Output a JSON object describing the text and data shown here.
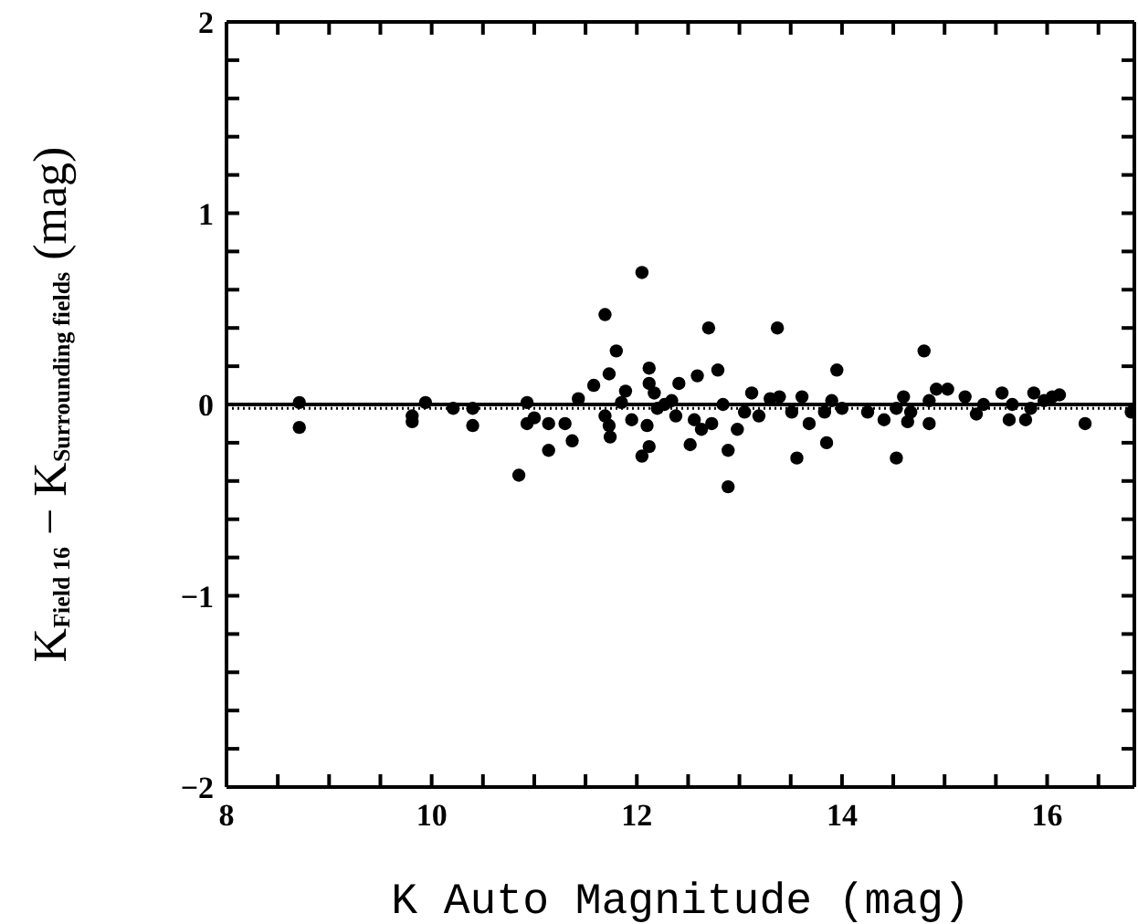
{
  "chart_data": {
    "type": "scatter",
    "xlabel": "K Auto Magnitude (mag)",
    "ylabel": "K$_{Field 16}$ − K$_{Surrounding fields}$ (mag)",
    "xlim": [
      8,
      16.85
    ],
    "ylim": [
      -2,
      2
    ],
    "xticks": [
      8,
      {
        "value": 8.5,
        "label": null
      },
      10,
      {
        "value": 9,
        "label": null
      },
      {
        "value": 9.5,
        "label": null
      },
      {
        "value": 10.5,
        "label": null
      },
      {
        "value": 11,
        "label": null
      },
      {
        "value": 11.5,
        "label": null
      },
      12,
      {
        "value": 12.5,
        "label": null
      },
      {
        "value": 13,
        "label": null
      },
      {
        "value": 13.5,
        "label": null
      },
      14,
      {
        "value": 14.5,
        "label": null
      },
      {
        "value": 15,
        "label": null
      },
      {
        "value": 15.5,
        "label": null
      },
      16,
      {
        "value": 16.5,
        "label": null
      }
    ],
    "yticks": [
      -2,
      {
        "value": -1.8,
        "label": null
      },
      {
        "value": -1.6,
        "label": null
      },
      {
        "value": -1.4,
        "label": null
      },
      {
        "value": -1.2,
        "label": null
      },
      -1,
      {
        "value": -0.8,
        "label": null
      },
      {
        "value": -0.6,
        "label": null
      },
      {
        "value": -0.4,
        "label": null
      },
      {
        "value": -0.2,
        "label": null
      },
      0,
      {
        "value": 0.2,
        "label": null
      },
      {
        "value": 0.4,
        "label": null
      },
      {
        "value": 0.6,
        "label": null
      },
      {
        "value": 0.8,
        "label": null
      },
      1,
      {
        "value": 1.2,
        "label": null
      },
      {
        "value": 1.4,
        "label": null
      },
      {
        "value": 1.6,
        "label": null
      },
      {
        "value": 1.8,
        "label": null
      },
      2
    ],
    "marker": "circle",
    "ref_lines": [
      {
        "axis": "y",
        "value": 0,
        "color": "#000000",
        "line_style": "solid"
      },
      {
        "axis": "y",
        "value": -0.02,
        "color": "#000000",
        "line_style": "dotted"
      }
    ],
    "series": [
      {
        "color": "#000000",
        "x": [
          8.71,
          8.71,
          9.81,
          9.81,
          9.94,
          10.21,
          10.4,
          10.4,
          10.85,
          10.93,
          10.93,
          11.0,
          11.14,
          11.14,
          11.3,
          11.37,
          11.43,
          11.58,
          11.69,
          11.73,
          11.69,
          11.73,
          11.74,
          11.8,
          11.89,
          11.85,
          11.95,
          12.05,
          12.05,
          12.12,
          12.12,
          12.12,
          12.1,
          12.17,
          12.2,
          12.27,
          12.34,
          12.41,
          12.38,
          12.52,
          12.59,
          12.56,
          12.63,
          12.7,
          12.73,
          12.79,
          12.84,
          12.89,
          12.89,
          12.98,
          13.05,
          13.12,
          13.19,
          13.3,
          13.37,
          13.39,
          13.51,
          13.56,
          13.61,
          13.68,
          13.83,
          13.85,
          13.9,
          13.95,
          14.0,
          14.25,
          14.41,
          14.53,
          14.53,
          14.6,
          14.64,
          14.67,
          14.8,
          14.85,
          14.85,
          14.92,
          15.03,
          15.2,
          15.31,
          15.38,
          15.56,
          15.63,
          15.66,
          15.79,
          15.84,
          15.87,
          15.97,
          16.05,
          16.12,
          16.37,
          16.82
        ],
        "values": [
          0.01,
          -0.12,
          -0.06,
          -0.09,
          0.01,
          -0.02,
          -0.02,
          -0.11,
          -0.37,
          0.01,
          -0.1,
          -0.07,
          -0.1,
          -0.24,
          -0.1,
          -0.19,
          0.03,
          0.1,
          0.47,
          0.16,
          -0.06,
          -0.11,
          -0.17,
          0.28,
          0.07,
          0.01,
          -0.08,
          0.69,
          -0.27,
          0.19,
          0.11,
          -0.22,
          -0.11,
          0.06,
          -0.02,
          0.0,
          0.02,
          0.11,
          -0.06,
          -0.21,
          0.15,
          -0.08,
          -0.13,
          0.4,
          -0.1,
          0.18,
          0.0,
          -0.24,
          -0.43,
          -0.13,
          -0.04,
          0.06,
          -0.06,
          0.03,
          0.4,
          0.04,
          -0.04,
          -0.28,
          0.04,
          -0.1,
          -0.04,
          -0.2,
          0.02,
          0.18,
          -0.02,
          -0.04,
          -0.08,
          -0.28,
          -0.02,
          0.04,
          -0.09,
          -0.04,
          0.28,
          -0.1,
          0.02,
          0.08,
          0.08,
          0.04,
          -0.05,
          0.0,
          0.06,
          -0.08,
          0.0,
          -0.08,
          -0.02,
          0.06,
          0.02,
          0.04,
          0.05,
          -0.1,
          -0.04
        ]
      }
    ]
  }
}
